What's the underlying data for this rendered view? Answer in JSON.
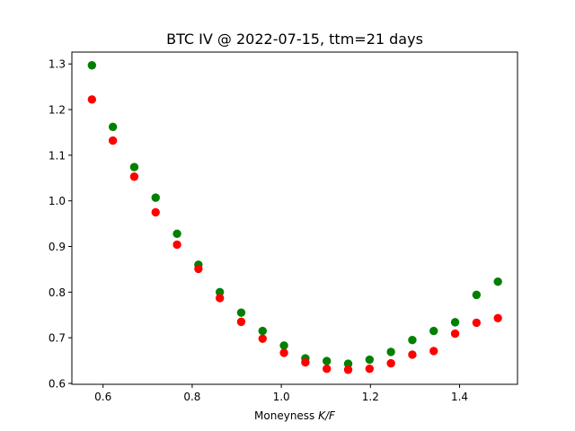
{
  "chart_data": {
    "type": "scatter",
    "title": "BTC IV @ 2022-07-15, ttm=21 days",
    "xlabel": {
      "prefix": "Moneyness ",
      "math": "K/F"
    },
    "ylabel": "",
    "xlim": [
      0.53,
      1.53
    ],
    "ylim": [
      0.598,
      1.326
    ],
    "xticks": [
      0.6,
      0.8,
      1.0,
      1.2,
      1.4
    ],
    "xtick_labels": [
      "0.6",
      "0.8",
      "1.0",
      "1.2",
      "1.4"
    ],
    "yticks": [
      0.6,
      0.7,
      0.8,
      0.9,
      1.0,
      1.1,
      1.2,
      1.3
    ],
    "ytick_labels": [
      "0.6",
      "0.7",
      "0.8",
      "0.9",
      "1.0",
      "1.1",
      "1.2",
      "1.3"
    ],
    "grid": false,
    "legend": "none",
    "x": [
      0.575,
      0.622,
      0.67,
      0.718,
      0.766,
      0.814,
      0.862,
      0.91,
      0.958,
      1.006,
      1.054,
      1.102,
      1.15,
      1.198,
      1.246,
      1.294,
      1.342,
      1.39,
      1.438,
      1.486
    ],
    "series": [
      {
        "color": "#008000",
        "values": [
          1.297,
          1.162,
          1.074,
          1.007,
          0.928,
          0.86,
          0.8,
          0.755,
          0.715,
          0.683,
          0.655,
          0.649,
          0.643,
          0.652,
          0.669,
          0.695,
          0.715,
          0.734,
          0.794,
          0.823
        ]
      },
      {
        "color": "#ff0000",
        "values": [
          1.222,
          1.132,
          1.053,
          0.975,
          0.904,
          0.851,
          0.787,
          0.735,
          0.698,
          0.667,
          0.646,
          0.632,
          0.63,
          0.632,
          0.644,
          0.663,
          0.671,
          0.709,
          0.733,
          0.743
        ]
      }
    ]
  }
}
